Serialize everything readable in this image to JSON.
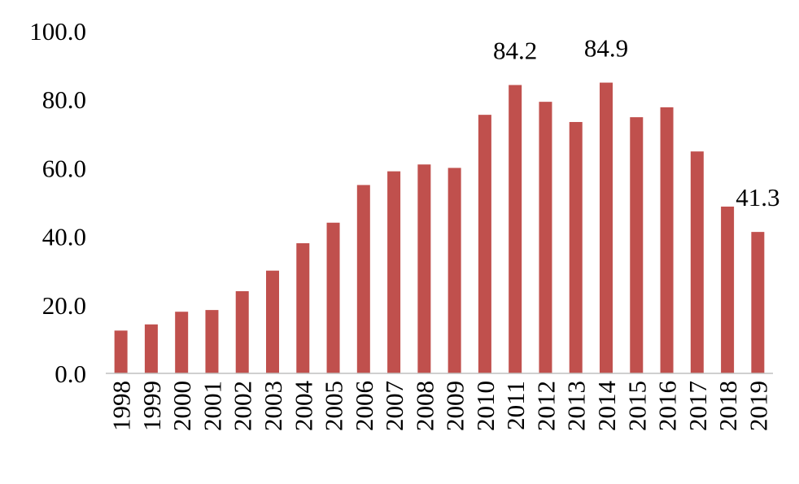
{
  "chart_data": {
    "type": "bar",
    "categories": [
      "1998",
      "1999",
      "2000",
      "2001",
      "2002",
      "2003",
      "2004",
      "2005",
      "2006",
      "2007",
      "2008",
      "2009",
      "2010",
      "2011",
      "2012",
      "2013",
      "2014",
      "2015",
      "2016",
      "2017",
      "2018",
      "2019"
    ],
    "values": [
      12.5,
      14.3,
      18.0,
      18.5,
      24.0,
      30.0,
      38.0,
      44.0,
      55.0,
      59.0,
      61.0,
      60.0,
      75.5,
      84.2,
      79.3,
      73.4,
      84.9,
      74.8,
      77.7,
      64.8,
      48.7,
      41.3
    ],
    "value_labels": [
      null,
      null,
      null,
      null,
      null,
      null,
      null,
      null,
      null,
      null,
      null,
      null,
      null,
      "84.2",
      null,
      null,
      "84.9",
      null,
      null,
      null,
      null,
      "41.3"
    ],
    "color": "#c0504d",
    "ylim": [
      0,
      100
    ],
    "yticks": [
      {
        "value": 0,
        "label": "0.0"
      },
      {
        "value": 20,
        "label": "20.0"
      },
      {
        "value": 40,
        "label": "40.0"
      },
      {
        "value": 60,
        "label": "60.0"
      },
      {
        "value": 80,
        "label": "80.0"
      },
      {
        "value": 100,
        "label": "100.0"
      }
    ],
    "grid": false
  }
}
